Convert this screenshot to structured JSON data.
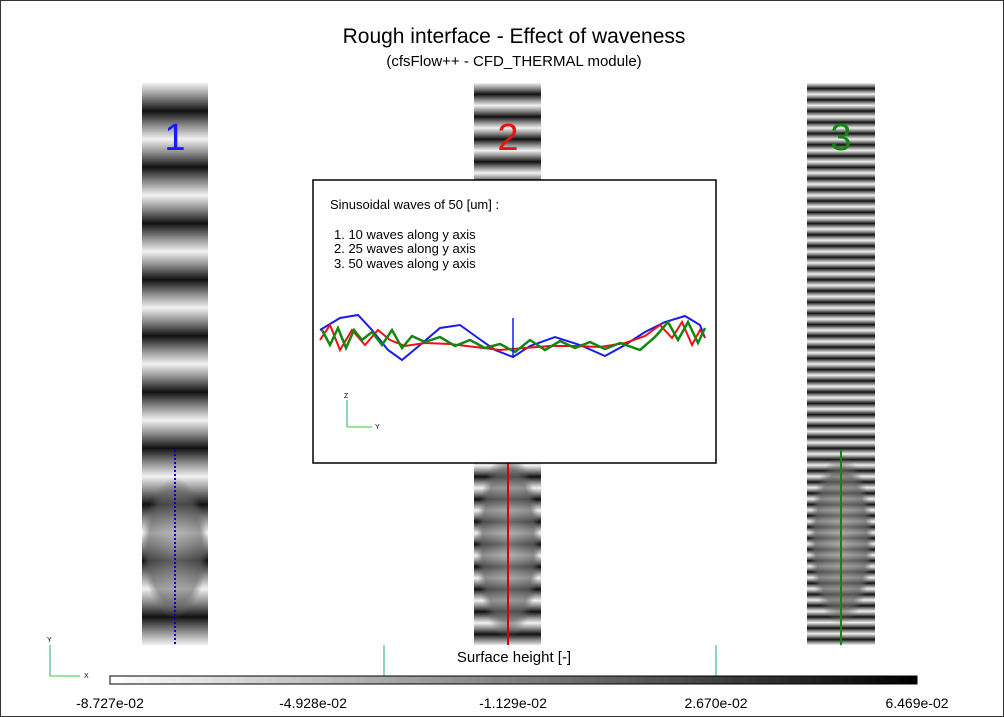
{
  "header": {
    "title": "Rough interface - Effect of waveness",
    "subtitle": "(cfsFlow++ - CFD_THERMAL module)"
  },
  "panels": [
    {
      "label": "1"
    },
    {
      "label": "2"
    },
    {
      "label": "3"
    }
  ],
  "inset": {
    "heading": "Sinusoidal waves of 50 [um] :",
    "items": [
      "1. 10 waves along y axis",
      "2. 25 waves along y axis",
      "3. 50 waves along y axis"
    ],
    "axes": [
      "Z",
      "Y"
    ]
  },
  "triad": [
    "Y",
    "X"
  ],
  "colorbar": {
    "title": "Surface height [-]",
    "ticks": [
      "-8.727e-02",
      "-4.928e-02",
      "-1.129e-02",
      "2.670e-02",
      "6.469e-02"
    ]
  }
}
